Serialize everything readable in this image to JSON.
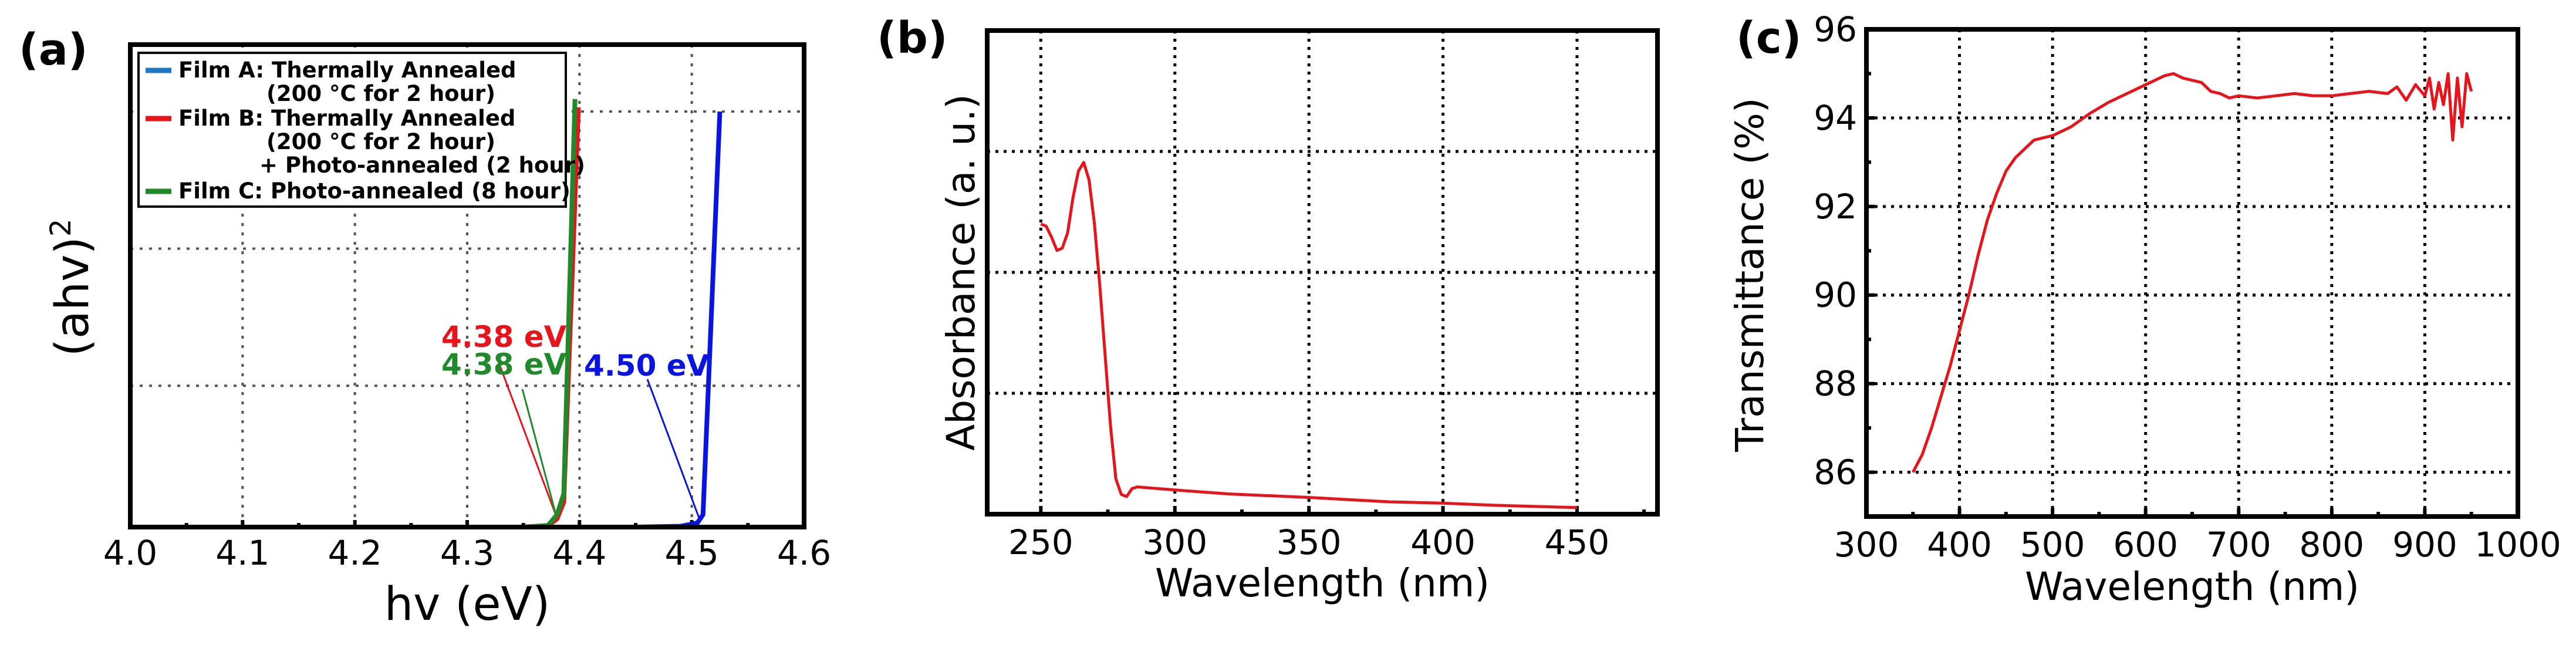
{
  "panel_labels": [
    "(a)",
    "(b)",
    "(c)"
  ],
  "chart_data": [
    {
      "type": "line",
      "title": "",
      "xlabel": "hv (eV)",
      "ylabel": "(ahv)",
      "ylabel_sup": "2",
      "xlim": [
        4.0,
        4.6
      ],
      "ylim": [
        0,
        1
      ],
      "xticks": [
        "4.0",
        "4.1",
        "4.2",
        "4.3",
        "4.4",
        "4.5",
        "4.6"
      ],
      "grid": true,
      "legend_position": "top-left",
      "legend": [
        {
          "color": "#1f77c8",
          "lines": [
            "Film A: Thermally Annealed",
            "(200 °C for 2 hour)"
          ]
        },
        {
          "color": "#e8141b",
          "lines": [
            "Film B: Thermally Annealed",
            "(200 °C for 2 hour)",
            "+ Photo-annealed (2 hour)"
          ]
        },
        {
          "color": "#208a2a",
          "lines": [
            "Film C: Photo-annealed (8 hour)"
          ]
        }
      ],
      "series": [
        {
          "name": "Film A",
          "color": "#0a14e0",
          "x": [
            4.0,
            4.45,
            4.49,
            4.505,
            4.51,
            4.525
          ],
          "y": [
            0.0,
            0.0,
            0.002,
            0.01,
            0.03,
            1.0
          ]
        },
        {
          "name": "Film B",
          "color": "#e8141b",
          "x": [
            4.0,
            4.35,
            4.372,
            4.38,
            4.386,
            4.399
          ],
          "y": [
            0.0,
            0.0,
            0.003,
            0.02,
            0.06,
            1.01
          ]
        },
        {
          "name": "Film C",
          "color": "#208a2a",
          "x": [
            4.0,
            4.35,
            4.372,
            4.38,
            4.386,
            4.396
          ],
          "y": [
            0.0,
            0.0,
            0.004,
            0.03,
            0.08,
            1.03
          ]
        }
      ],
      "annotations": [
        {
          "text": "4.38 eV",
          "color": "#e8141b"
        },
        {
          "text": "4.38 eV",
          "color": "#208a2a"
        },
        {
          "text": "4.50 eV",
          "color": "#0a14e0"
        }
      ]
    },
    {
      "type": "line",
      "title": "",
      "xlabel": "Wavelength (nm)",
      "ylabel": "Absorbance (a. u.)",
      "xlim": [
        230,
        480
      ],
      "ylim": [
        0,
        1.1
      ],
      "xticks": [
        "250",
        "300",
        "350",
        "400",
        "450"
      ],
      "grid": true,
      "series": [
        {
          "name": "Absorbance",
          "color": "#e8141b",
          "x": [
            250,
            252,
            254,
            256,
            258,
            260,
            262,
            264,
            266,
            268,
            270,
            272,
            274,
            276,
            278,
            280,
            282,
            284,
            286,
            290,
            300,
            320,
            350,
            380,
            400,
            420,
            450
          ],
          "y": [
            0.66,
            0.655,
            0.63,
            0.6,
            0.605,
            0.64,
            0.72,
            0.78,
            0.8,
            0.76,
            0.66,
            0.52,
            0.36,
            0.2,
            0.08,
            0.045,
            0.04,
            0.058,
            0.062,
            0.06,
            0.055,
            0.046,
            0.038,
            0.028,
            0.025,
            0.02,
            0.015
          ]
        }
      ]
    },
    {
      "type": "line",
      "title": "",
      "xlabel": "Wavelength (nm)",
      "ylabel": "Transmittance (%)",
      "xlim": [
        300,
        1000
      ],
      "ylim": [
        85,
        96
      ],
      "xticks": [
        "300",
        "400",
        "500",
        "600",
        "700",
        "800",
        "900",
        "1000"
      ],
      "yticks": [
        "86",
        "88",
        "90",
        "92",
        "94",
        "96"
      ],
      "grid": true,
      "series": [
        {
          "name": "Transmittance",
          "color": "#e8141b",
          "x": [
            350,
            360,
            370,
            380,
            390,
            400,
            410,
            420,
            430,
            440,
            450,
            460,
            470,
            480,
            490,
            500,
            520,
            540,
            560,
            580,
            600,
            620,
            630,
            640,
            650,
            660,
            670,
            680,
            690,
            700,
            720,
            740,
            760,
            780,
            800,
            820,
            840,
            860,
            870,
            880,
            890,
            900,
            905,
            910,
            915,
            920,
            925,
            930,
            935,
            940,
            945,
            950
          ],
          "y": [
            86.0,
            86.4,
            87.0,
            87.7,
            88.4,
            89.2,
            90.0,
            90.9,
            91.7,
            92.3,
            92.8,
            93.1,
            93.3,
            93.5,
            93.55,
            93.6,
            93.8,
            94.1,
            94.35,
            94.55,
            94.75,
            94.95,
            95.0,
            94.9,
            94.85,
            94.8,
            94.6,
            94.55,
            94.45,
            94.5,
            94.45,
            94.5,
            94.55,
            94.5,
            94.5,
            94.55,
            94.6,
            94.55,
            94.7,
            94.4,
            94.75,
            94.5,
            94.9,
            94.2,
            94.8,
            94.3,
            95.0,
            93.5,
            94.9,
            93.8,
            95.0,
            94.6
          ]
        }
      ]
    }
  ]
}
